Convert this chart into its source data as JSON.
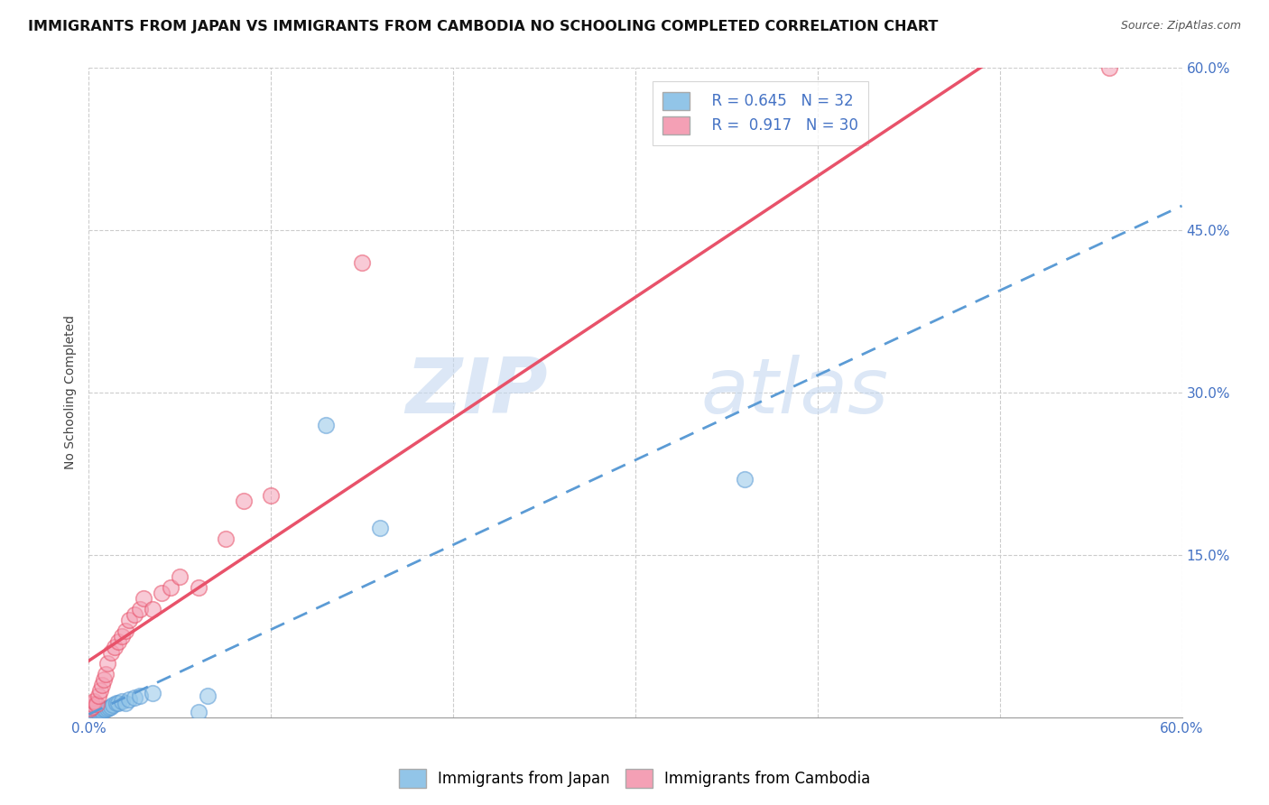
{
  "title": "IMMIGRANTS FROM JAPAN VS IMMIGRANTS FROM CAMBODIA NO SCHOOLING COMPLETED CORRELATION CHART",
  "source": "Source: ZipAtlas.com",
  "ylabel": "No Schooling Completed",
  "xlim": [
    0.0,
    0.6
  ],
  "ylim": [
    0.0,
    0.6
  ],
  "xtick_left_label": "0.0%",
  "xtick_right_label": "60.0%",
  "xtick_minor_vals": [
    0.1,
    0.2,
    0.3,
    0.4,
    0.5
  ],
  "right_ytick_labels": [
    "15.0%",
    "30.0%",
    "45.0%",
    "60.0%"
  ],
  "right_ytick_vals": [
    0.15,
    0.3,
    0.45,
    0.6
  ],
  "japan_color": "#92C5E8",
  "cambodia_color": "#F4A0B5",
  "japan_line_color": "#5B9BD5",
  "cambodia_line_color": "#E8526A",
  "legend_r_japan": "R = 0.645",
  "legend_n_japan": "N = 32",
  "legend_r_cambodia": "R =  0.917",
  "legend_n_cambodia": "N = 30",
  "watermark_zip": "ZIP",
  "watermark_atlas": "atlas",
  "background_color": "#ffffff",
  "grid_color": "#cccccc",
  "title_fontsize": 11.5,
  "axis_label_fontsize": 10,
  "tick_fontsize": 11,
  "legend_fontsize": 12,
  "japan_scatter_x": [
    0.001,
    0.001,
    0.001,
    0.002,
    0.002,
    0.003,
    0.003,
    0.004,
    0.005,
    0.005,
    0.006,
    0.007,
    0.007,
    0.008,
    0.009,
    0.01,
    0.011,
    0.012,
    0.013,
    0.015,
    0.016,
    0.018,
    0.02,
    0.022,
    0.025,
    0.028,
    0.035,
    0.06,
    0.065,
    0.13,
    0.16,
    0.36
  ],
  "japan_scatter_y": [
    0.001,
    0.002,
    0.003,
    0.002,
    0.003,
    0.003,
    0.004,
    0.004,
    0.004,
    0.005,
    0.005,
    0.005,
    0.006,
    0.007,
    0.007,
    0.008,
    0.009,
    0.01,
    0.011,
    0.013,
    0.013,
    0.015,
    0.013,
    0.016,
    0.018,
    0.02,
    0.022,
    0.005,
    0.02,
    0.27,
    0.175,
    0.22
  ],
  "cambodia_scatter_x": [
    0.001,
    0.002,
    0.002,
    0.003,
    0.004,
    0.005,
    0.006,
    0.007,
    0.008,
    0.009,
    0.01,
    0.012,
    0.014,
    0.016,
    0.018,
    0.02,
    0.022,
    0.025,
    0.028,
    0.03,
    0.035,
    0.04,
    0.045,
    0.05,
    0.06,
    0.075,
    0.085,
    0.1,
    0.15,
    0.56
  ],
  "cambodia_scatter_y": [
    0.008,
    0.01,
    0.012,
    0.015,
    0.012,
    0.02,
    0.025,
    0.03,
    0.035,
    0.04,
    0.05,
    0.06,
    0.065,
    0.07,
    0.075,
    0.08,
    0.09,
    0.095,
    0.1,
    0.11,
    0.1,
    0.115,
    0.12,
    0.13,
    0.12,
    0.165,
    0.2,
    0.205,
    0.42,
    0.6
  ]
}
